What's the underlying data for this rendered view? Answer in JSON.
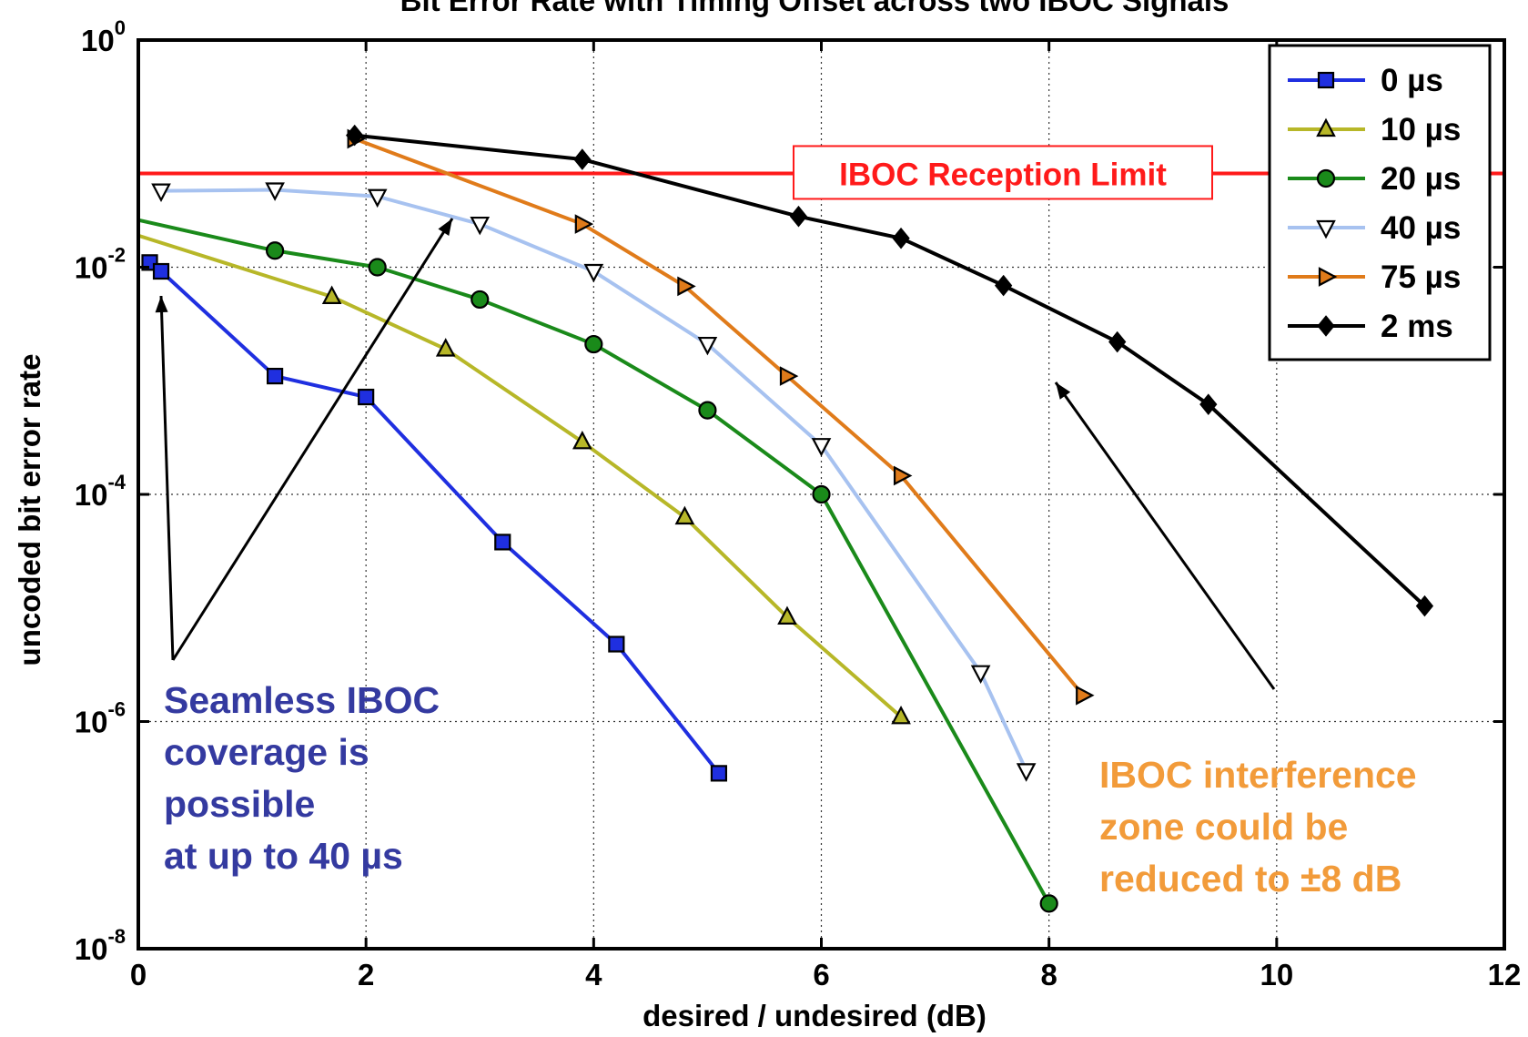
{
  "chart_data": {
    "type": "line",
    "title": "Bit Error Rate with Timing Offset across two IBOC Signals",
    "xlabel": "desired / undesired (dB)",
    "ylabel": "uncoded bit error rate",
    "xlim": [
      0,
      12
    ],
    "ylim": [
      1e-08,
      1
    ],
    "yscale": "log",
    "grid": true,
    "legend_position": "top-right",
    "x_ticks": [
      {
        "value": 0,
        "label": "0"
      },
      {
        "value": 2,
        "label": "2"
      },
      {
        "value": 4,
        "label": "4"
      },
      {
        "value": 6,
        "label": "6"
      },
      {
        "value": 8,
        "label": "8"
      },
      {
        "value": 10,
        "label": "10"
      },
      {
        "value": 12,
        "label": "12"
      }
    ],
    "y_ticks": [
      {
        "value": 1,
        "base": "10",
        "exp": "0"
      },
      {
        "value": 0.01,
        "base": "10",
        "exp": "-2"
      },
      {
        "value": 0.0001,
        "base": "10",
        "exp": "-4"
      },
      {
        "value": 1e-06,
        "base": "10",
        "exp": "-6"
      },
      {
        "value": 1e-08,
        "base": "10",
        "exp": "-8"
      }
    ],
    "series": [
      {
        "name": "0 µs",
        "legend_label": "0 µs",
        "color": "#1f2fe0",
        "marker": "square",
        "x": [
          0.1,
          0.2,
          1.2,
          2.0,
          3.2,
          4.2,
          5.1
        ],
        "y": [
          0.011,
          0.0092,
          0.0011,
          0.00072,
          3.8e-05,
          4.8e-06,
          3.5e-07
        ]
      },
      {
        "name": "10 µs",
        "legend_label": "10 µs",
        "color": "#b7b728",
        "marker": "triangle-up",
        "x": [
          1.7,
          2.7,
          3.9,
          4.8,
          5.7,
          6.7
        ],
        "y": [
          0.0055,
          0.0019,
          0.00029,
          6.3e-05,
          8.3e-06,
          1.1e-06
        ],
        "curve_start": {
          "x": 0,
          "y": 0.019
        }
      },
      {
        "name": "20 µs",
        "legend_label": "20 µs",
        "color": "#1a8a1a",
        "marker": "circle",
        "x": [
          1.2,
          2.1,
          3.0,
          4.0,
          5.0,
          6.0,
          8.0
        ],
        "y": [
          0.014,
          0.01,
          0.0052,
          0.0021,
          0.00055,
          0.0001,
          2.5e-08
        ],
        "curve_start": {
          "x": 0,
          "y": 0.026
        }
      },
      {
        "name": "40 µs",
        "legend_label": "40 µs",
        "color": "#a7c2f0",
        "marker": "triangle-down",
        "x": [
          0.2,
          1.2,
          2.1,
          3.0,
          4.0,
          5.0,
          6.0,
          7.4,
          7.8
        ],
        "y": [
          0.047,
          0.048,
          0.042,
          0.024,
          0.0092,
          0.0021,
          0.00027,
          2.7e-06,
          3.7e-07
        ]
      },
      {
        "name": "75 µs",
        "legend_label": "75 µs",
        "color": "#e07b1a",
        "marker": "triangle-right",
        "x": [
          1.9,
          3.9,
          4.8,
          5.7,
          6.7,
          8.3
        ],
        "y": [
          0.135,
          0.024,
          0.0068,
          0.0011,
          0.000146,
          1.7e-06
        ]
      },
      {
        "name": "2 ms",
        "legend_label": "2 ms",
        "color": "#000000",
        "marker": "diamond",
        "x": [
          1.9,
          3.9,
          5.8,
          6.7,
          7.6,
          8.6,
          9.4,
          11.3
        ],
        "y": [
          0.145,
          0.089,
          0.028,
          0.018,
          0.0069,
          0.0022,
          0.00062,
          1.04e-05
        ]
      }
    ],
    "reference_line": {
      "y": 0.067,
      "color": "#ff1a1a",
      "label": "IBOC Reception Limit"
    },
    "annotations": [
      {
        "lines": [
          "Seamless IBOC",
          "coverage is",
          "possible",
          "at up to 40 µs"
        ],
        "color": "#343aa0"
      },
      {
        "lines": [
          "IBOC interference",
          "zone could be",
          "reduced to ±8 dB"
        ],
        "color": "#f29b3a"
      }
    ]
  }
}
